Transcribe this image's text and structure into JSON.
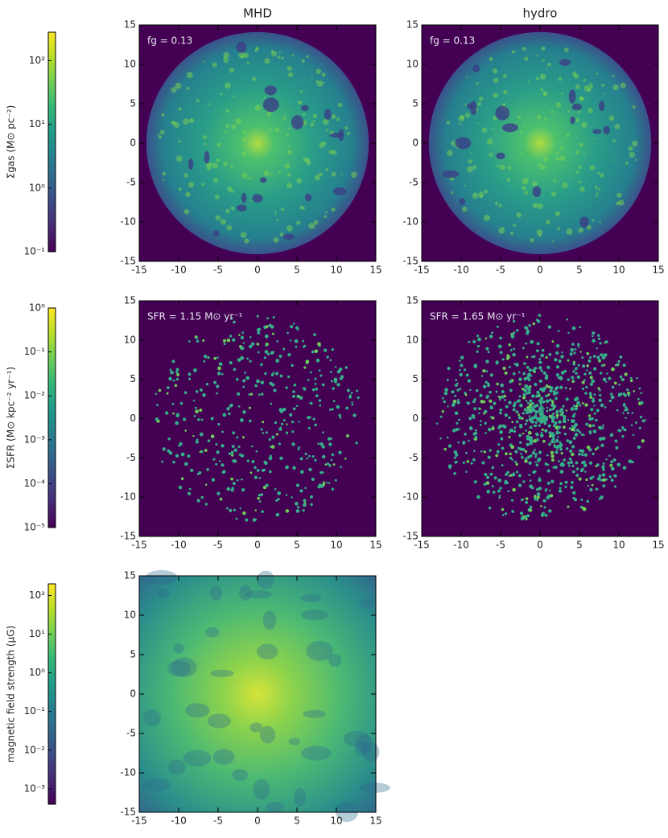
{
  "chart_data": [
    {
      "type": "colorbar",
      "label": "Σgas (M⊙ pc⁻²)",
      "log": true,
      "colormap": "viridis",
      "ylim": [
        0.1,
        280
      ],
      "yticks": [
        {
          "value": 0.1,
          "label": "10⁻¹"
        },
        {
          "value": 1,
          "label": "10⁰"
        },
        {
          "value": 10,
          "label": "10¹"
        },
        {
          "value": 100,
          "label": "10²"
        }
      ]
    },
    {
      "type": "image",
      "title": "MHD",
      "annotation": "fg = 0.13",
      "xlim": [
        -15,
        15
      ],
      "ylim": [
        -15,
        15
      ],
      "xticks": [
        -15,
        -10,
        -5,
        0,
        5,
        10,
        15
      ],
      "yticks": [
        -15,
        -10,
        -5,
        0,
        5,
        10,
        15
      ]
    },
    {
      "type": "image",
      "title": "hydro",
      "annotation": "fg = 0.13",
      "xlim": [
        -15,
        15
      ],
      "ylim": [
        -15,
        15
      ],
      "xticks": [
        -15,
        -10,
        -5,
        0,
        5,
        10,
        15
      ],
      "yticks": [
        -15,
        -10,
        -5,
        0,
        5,
        10,
        15
      ]
    },
    {
      "type": "colorbar",
      "label": "ΣSFR (M⊙ kpc⁻² yr⁻¹)",
      "log": true,
      "colormap": "viridis",
      "ylim": [
        1e-05,
        1
      ],
      "yticks": [
        {
          "value": 1e-05,
          "label": "10⁻⁵"
        },
        {
          "value": 0.0001,
          "label": "10⁻⁴"
        },
        {
          "value": 0.001,
          "label": "10⁻³"
        },
        {
          "value": 0.01,
          "label": "10⁻²"
        },
        {
          "value": 0.1,
          "label": "10⁻¹"
        },
        {
          "value": 1,
          "label": "10⁰"
        }
      ]
    },
    {
      "type": "image",
      "annotation": "SFR = 1.15 M⊙ yr⁻¹",
      "xlim": [
        -15,
        15
      ],
      "ylim": [
        -15,
        15
      ],
      "xticks": [
        -15,
        -10,
        -5,
        0,
        5,
        10,
        15
      ],
      "yticks": [
        -15,
        -10,
        -5,
        0,
        5,
        10,
        15
      ]
    },
    {
      "type": "image",
      "annotation": "SFR = 1.65 M⊙ yr⁻¹",
      "xlim": [
        -15,
        15
      ],
      "ylim": [
        -15,
        15
      ],
      "xticks": [
        -15,
        -10,
        -5,
        0,
        5,
        10,
        15
      ],
      "yticks": [
        -15,
        -10,
        -5,
        0,
        5,
        10,
        15
      ]
    },
    {
      "type": "colorbar",
      "label": "magnetic field strength (μG)",
      "log": true,
      "colormap": "viridis",
      "ylim": [
        0.0004,
        200
      ],
      "yticks": [
        {
          "value": 0.001,
          "label": "10⁻³"
        },
        {
          "value": 0.01,
          "label": "10⁻²"
        },
        {
          "value": 0.1,
          "label": "10⁻¹"
        },
        {
          "value": 1,
          "label": "10⁰"
        },
        {
          "value": 10,
          "label": "10¹"
        },
        {
          "value": 100,
          "label": "10²"
        }
      ]
    },
    {
      "type": "image",
      "xlim": [
        -15,
        15
      ],
      "ylim": [
        -15,
        15
      ],
      "xticks": [
        -15,
        -10,
        -5,
        0,
        5,
        10,
        15
      ],
      "yticks": [
        -15,
        -10,
        -5,
        0,
        5,
        10,
        15
      ]
    }
  ]
}
